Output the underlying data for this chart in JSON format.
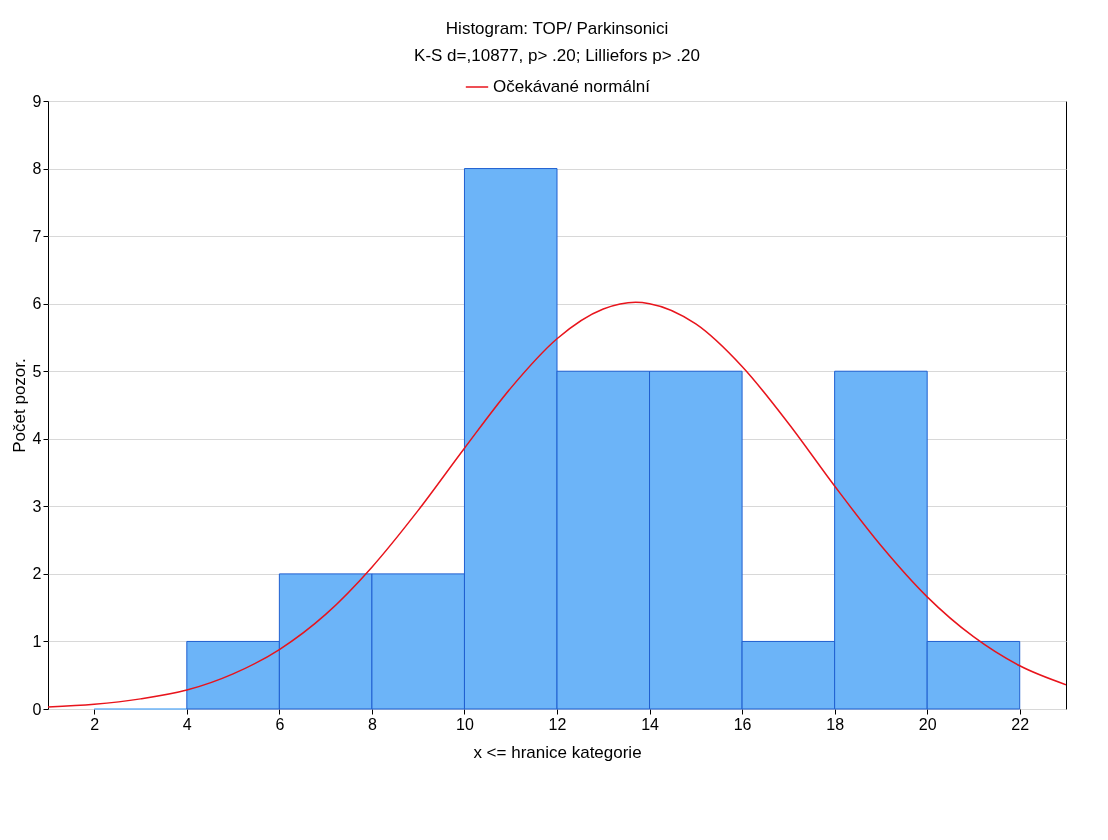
{
  "chart_data": {
    "type": "histogram",
    "title": "Histogram: TOP/ Parkinsonici",
    "subtitle": "K-S d=,10877, p> .20; Lilliefors p> .20",
    "xlabel": "x <= hranice kategorie",
    "ylabel": "Počet pozor.",
    "bins": [
      2,
      4,
      6,
      8,
      10,
      12,
      14,
      16,
      18,
      20,
      22
    ],
    "values": [
      0,
      1,
      2,
      2,
      8,
      5,
      5,
      1,
      5,
      1
    ],
    "color": "#6cb4f8",
    "series": [
      {
        "type": "line",
        "name": "Očekávané normální",
        "color": "#e8141c",
        "x": [
          1,
          2,
          3,
          4,
          5,
          6,
          7,
          8,
          9,
          10,
          11,
          12,
          13,
          13.7,
          14,
          15,
          16,
          17,
          18,
          19,
          20,
          21,
          22,
          23
        ],
        "values": [
          0.03,
          0.07,
          0.15,
          0.28,
          0.52,
          0.88,
          1.4,
          2.1,
          2.94,
          3.86,
          4.75,
          5.48,
          5.92,
          6.02,
          6.0,
          5.7,
          5.07,
          4.23,
          3.3,
          2.42,
          1.66,
          1.07,
          0.64,
          0.36
        ]
      }
    ],
    "xlim": [
      1,
      23
    ],
    "xticks": [
      2,
      4,
      6,
      8,
      10,
      12,
      14,
      16,
      18,
      20,
      22
    ],
    "ylim": [
      0,
      9
    ],
    "yticks": [
      0,
      1,
      2,
      3,
      4,
      5,
      6,
      7,
      8,
      9
    ],
    "grid": "y",
    "legend": "top"
  }
}
